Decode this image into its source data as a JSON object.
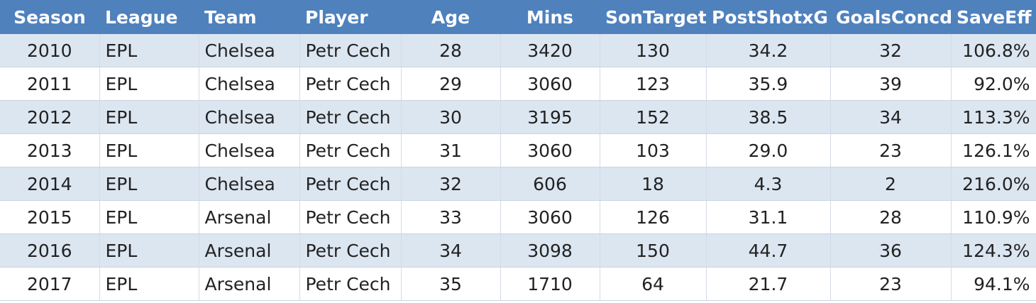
{
  "table": {
    "header": [
      "Season",
      "League",
      "Team",
      "Player",
      "Age",
      "Mins",
      "SonTarget",
      "PostShotxG",
      "GoalsConcd",
      "SaveEff"
    ],
    "rows": [
      [
        "2010",
        "EPL",
        "Chelsea",
        "Petr Cech",
        "28",
        "3420",
        "130",
        "34.2",
        "32",
        "106.8%"
      ],
      [
        "2011",
        "EPL",
        "Chelsea",
        "Petr Cech",
        "29",
        "3060",
        "123",
        "35.9",
        "39",
        "92.0%"
      ],
      [
        "2012",
        "EPL",
        "Chelsea",
        "Petr Cech",
        "30",
        "3195",
        "152",
        "38.5",
        "34",
        "113.3%"
      ],
      [
        "2013",
        "EPL",
        "Chelsea",
        "Petr Cech",
        "31",
        "3060",
        "103",
        "29.0",
        "23",
        "126.1%"
      ],
      [
        "2014",
        "EPL",
        "Chelsea",
        "Petr Cech",
        "32",
        "606",
        "18",
        "4.3",
        "2",
        "216.0%"
      ],
      [
        "2015",
        "EPL",
        "Arsenal",
        "Petr Cech",
        "33",
        "3060",
        "126",
        "31.1",
        "28",
        "110.9%"
      ],
      [
        "2016",
        "EPL",
        "Arsenal",
        "Petr Cech",
        "34",
        "3098",
        "150",
        "44.7",
        "36",
        "124.3%"
      ],
      [
        "2017",
        "EPL",
        "Arsenal",
        "Petr Cech",
        "35",
        "1710",
        "64",
        "21.7",
        "23",
        "94.1%"
      ]
    ]
  }
}
